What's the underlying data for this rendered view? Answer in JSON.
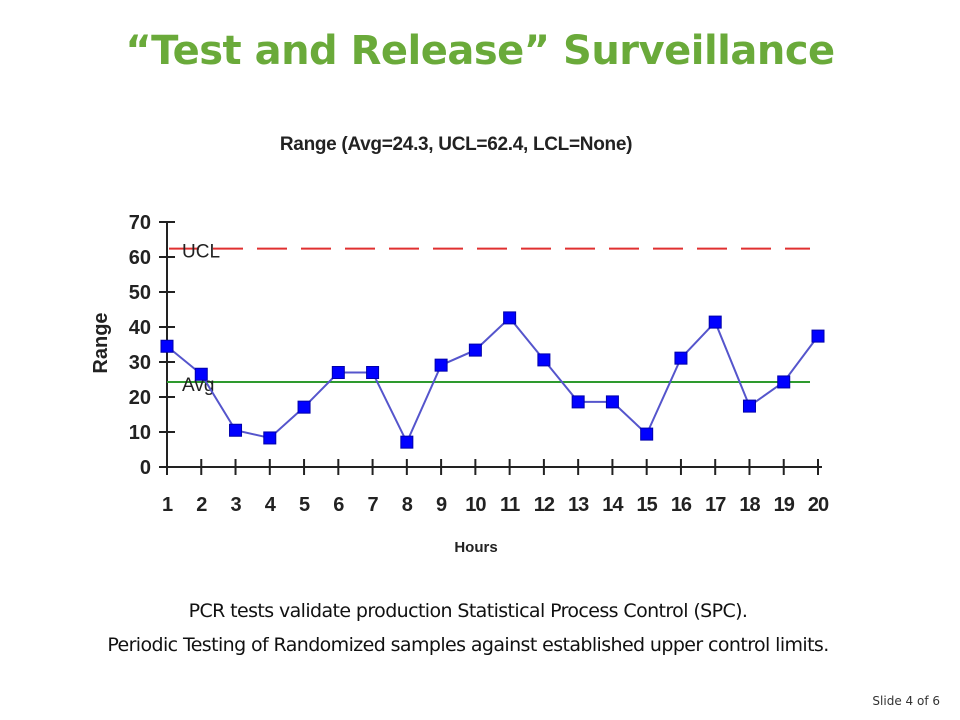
{
  "slide": {
    "title": "“Test and Release” Surveillance",
    "title_color": "#6aaa3a",
    "captions": [
      "PCR tests validate production Statistical Process Control (SPC).",
      "Periodic Testing of Randomized samples against established upper control limits."
    ],
    "slide_number": "Slide 4 of 6"
  },
  "chart_data": {
    "type": "line",
    "title": "Range (Avg=24.3, UCL=62.4, LCL=None)",
    "xlabel": "Hours",
    "ylabel": "Range",
    "x": [
      1,
      2,
      3,
      4,
      5,
      6,
      7,
      8,
      9,
      10,
      11,
      12,
      13,
      14,
      15,
      16,
      17,
      18,
      19,
      20
    ],
    "series": [
      {
        "name": "Range",
        "color": "#0000ff",
        "line_color": "#5555cc",
        "marker": "square",
        "values": [
          34.5,
          26.5,
          10.5,
          8.3,
          17.1,
          27.0,
          27.0,
          7.1,
          29.1,
          33.4,
          42.6,
          30.6,
          18.6,
          18.6,
          9.4,
          31.1,
          41.4,
          17.4,
          24.3,
          37.4
        ]
      }
    ],
    "reference_lines": [
      {
        "name": "UCL",
        "label": "UCL",
        "value": 62.4,
        "color": "#e03030",
        "style": "dashed"
      },
      {
        "name": "Avg",
        "label": "Avg",
        "value": 24.3,
        "color": "#2e9a2e",
        "style": "solid"
      }
    ],
    "lcl": "None",
    "ylim": [
      0,
      70
    ],
    "yticks": [
      0,
      10,
      20,
      30,
      40,
      50,
      60,
      70
    ],
    "xticks": [
      "1",
      "2",
      "3",
      "4",
      "5",
      "6",
      "7",
      "8",
      "9",
      "10",
      "11",
      "12",
      "13",
      "14",
      "15",
      "16",
      "17",
      "18",
      "19",
      "20"
    ],
    "grid": false,
    "legend": "none"
  }
}
